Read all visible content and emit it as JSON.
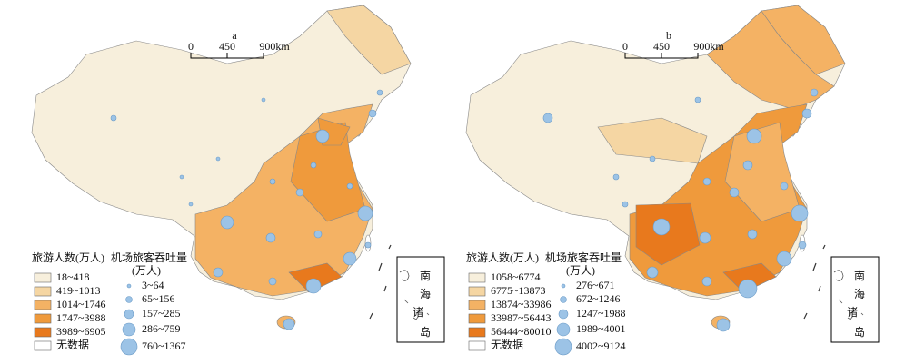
{
  "panels": [
    {
      "label": "a",
      "scale": [
        "0",
        "450",
        "900km"
      ],
      "fill_legend": {
        "title": "旅游人数(万人)",
        "items": [
          {
            "label": "18~418",
            "color": "#f7efdc"
          },
          {
            "label": "419~1013",
            "color": "#f5d6a3"
          },
          {
            "label": "1014~1746",
            "color": "#f4b264"
          },
          {
            "label": "1747~3988",
            "color": "#ef9a3c"
          },
          {
            "label": "3989~6905",
            "color": "#e8791d"
          },
          {
            "label": "无数据",
            "color": "#ffffff"
          }
        ]
      },
      "bubble_legend": {
        "title": [
          "机场旅客吞吐量",
          "(万人)"
        ],
        "items": [
          "3~64",
          "65~156",
          "157~285",
          "286~759",
          "760~1367"
        ]
      },
      "inset": [
        "南",
        "海",
        "诸",
        "岛"
      ]
    },
    {
      "label": "b",
      "scale": [
        "0",
        "450",
        "900km"
      ],
      "fill_legend": {
        "title": "旅游人数(万人)",
        "items": [
          {
            "label": "1058~6774",
            "color": "#f7efdc"
          },
          {
            "label": "6775~13873",
            "color": "#f5d6a3"
          },
          {
            "label": "13874~33986",
            "color": "#f4b264"
          },
          {
            "label": "33987~56443",
            "color": "#ef9a3c"
          },
          {
            "label": "56444~80010",
            "color": "#e8791d"
          },
          {
            "label": "无数据",
            "color": "#ffffff"
          }
        ]
      },
      "bubble_legend": {
        "title": [
          "机场旅客吞吐量",
          "(万人)"
        ],
        "items": [
          "276~671",
          "672~1246",
          "1247~1988",
          "1989~4001",
          "4002~9124"
        ]
      },
      "inset": [
        "南",
        "海",
        "诸",
        "岛"
      ]
    }
  ]
}
